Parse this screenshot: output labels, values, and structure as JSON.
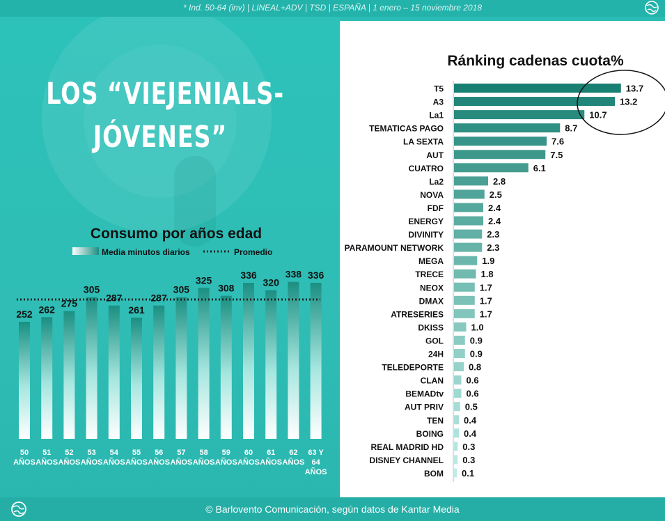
{
  "header_note": "* Ind. 50-64 (inv) | LINEAL+ADV | TSD | ESPAÑA | 1 enero – 15 noviembre 2018",
  "title_line1": "LOS “VIEJENIALS-",
  "title_line2": "JÓVENES”",
  "footer_text": "© Barlovento Comunicación, según datos de Kantar Media",
  "icons": [
    "globe-logo-icon"
  ],
  "colors": {
    "teal_bg": "#2bbdb5",
    "bar_dark": "#1a8f82",
    "bar_light": "#a6e6df",
    "avg_line": "#222222"
  },
  "chart_data": [
    {
      "type": "bar",
      "title": "Consumo por años edad",
      "legend": {
        "bar_label": "Media minutos diarios",
        "line_label": "Promedio",
        "placement": "top"
      },
      "categories": [
        [
          "50",
          "AÑOS"
        ],
        [
          "51",
          "AÑOS"
        ],
        [
          "52",
          "AÑOS"
        ],
        [
          "53",
          "AÑOS"
        ],
        [
          "54",
          "AÑOS"
        ],
        [
          "55",
          "AÑOS"
        ],
        [
          "56",
          "AÑOS"
        ],
        [
          "57",
          "AÑOS"
        ],
        [
          "58",
          "AÑOS"
        ],
        [
          "59",
          "AÑOS"
        ],
        [
          "60",
          "AÑOS"
        ],
        [
          "61",
          "AÑOS"
        ],
        [
          "62",
          "AÑOS"
        ],
        [
          "63 Y",
          "64",
          "AÑOS"
        ]
      ],
      "series": [
        {
          "name": "Media minutos diarios",
          "values": [
            252,
            262,
            275,
            305,
            287,
            261,
            287,
            305,
            325,
            308,
            336,
            320,
            338,
            336
          ]
        }
      ],
      "average": 300,
      "ylim": [
        0,
        360
      ],
      "grid": false
    },
    {
      "type": "bar",
      "orientation": "horizontal",
      "title": "Ránking cadenas cuota%",
      "categories": [
        "T5",
        "A3",
        "La1",
        "TEMATICAS PAGO",
        "LA SEXTA",
        "AUT",
        "CUATRO",
        "La2",
        "NOVA",
        "FDF",
        "ENERGY",
        "DIVINITY",
        "PARAMOUNT NETWORK",
        "MEGA",
        "TRECE",
        "NEOX",
        "DMAX",
        "ATRESERIES",
        "DKISS",
        "GOL",
        "24H",
        "TELEDEPORTE",
        "CLAN",
        "BEMADtv",
        "AUT PRIV",
        "TEN",
        "BOING",
        "REAL MADRID HD",
        "DISNEY CHANNEL",
        "BOM"
      ],
      "values": [
        13.7,
        13.2,
        10.7,
        8.7,
        7.6,
        7.5,
        6.1,
        2.8,
        2.5,
        2.4,
        2.4,
        2.3,
        2.3,
        1.9,
        1.8,
        1.7,
        1.7,
        1.7,
        1.0,
        0.9,
        0.9,
        0.8,
        0.6,
        0.6,
        0.5,
        0.4,
        0.4,
        0.3,
        0.3,
        0.1
      ],
      "labels": [
        "13.7",
        "13.2",
        "10.7",
        "8.7",
        "7.6",
        "7.5",
        "6.1",
        "2.8",
        "2.5",
        "2.4",
        "2.4",
        "2.3",
        "2.3",
        "1.9",
        "1.8",
        "1.7",
        "1.7",
        "1.7",
        "1.0",
        "0.9",
        "0.9",
        "0.8",
        "0.6",
        "0.6",
        "0.5",
        "0.4",
        "0.4",
        "0.3",
        "0.3",
        "0.1"
      ],
      "xlim": [
        0,
        14
      ],
      "highlight": "ellipse around top three values",
      "grid": false
    }
  ]
}
